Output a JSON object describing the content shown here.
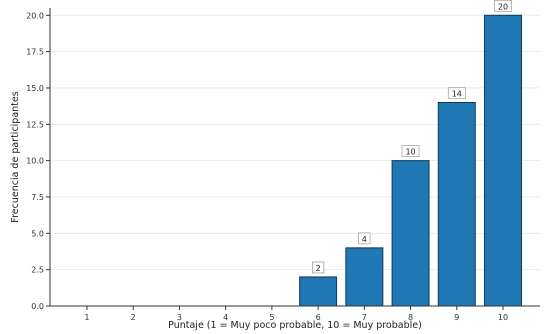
{
  "chart_data": {
    "type": "bar",
    "title": "",
    "xlabel": "Puntaje (1 = Muy poco probable, 10 = Muy probable)",
    "ylabel": "Frecuencia de participantes",
    "categories": [
      "1",
      "2",
      "3",
      "4",
      "5",
      "6",
      "7",
      "8",
      "9",
      "10"
    ],
    "values": [
      0,
      0,
      0,
      0,
      0,
      2,
      4,
      10,
      14,
      20
    ],
    "data_labels": [
      "",
      "",
      "",
      "",
      "",
      "2",
      "4",
      "10",
      "14",
      "20"
    ],
    "ylim": [
      0,
      20.5
    ],
    "yticks": [
      "0.0",
      "2.5",
      "5.0",
      "7.5",
      "10.0",
      "12.5",
      "15.0",
      "17.5",
      "20.0"
    ],
    "grid": "horizontal",
    "bar_color": "#1f77b4",
    "bar_edge_color": "#0d3a5c"
  }
}
